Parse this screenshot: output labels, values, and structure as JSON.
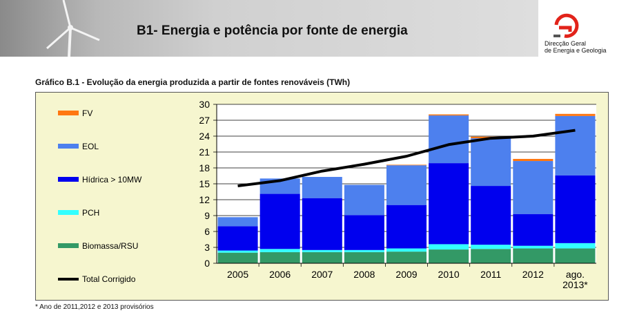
{
  "header": {
    "title": "B1- Energia e potência por fonte de energia",
    "logo_line1": "Direcção Geral",
    "logo_line2": "de Energia e Geologia"
  },
  "chart_heading": "Gráfico B.1 - Evolução da energia produzida a partir de fontes renováveis (TWh)",
  "footnote": "* Ano de 2011,2012 e 2013 provisórios",
  "chart_data": {
    "type": "bar",
    "stacked": true,
    "title": "",
    "xlabel": "",
    "ylabel": "",
    "ylim": [
      0,
      30
    ],
    "yticks": [
      0,
      3,
      6,
      9,
      12,
      15,
      18,
      21,
      24,
      27,
      30
    ],
    "grid": true,
    "legend_position": "left",
    "categories": [
      "2005",
      "2006",
      "2007",
      "2008",
      "2009",
      "2010",
      "2011",
      "2012",
      "ago.|2013*"
    ],
    "series": [
      {
        "name": "Biomassa/RSU",
        "color": "#339966",
        "values": [
          2.0,
          2.1,
          2.1,
          2.1,
          2.2,
          2.6,
          2.7,
          2.8,
          2.8
        ]
      },
      {
        "name": "PCH",
        "color": "#33ffff",
        "values": [
          0.4,
          0.6,
          0.4,
          0.4,
          0.6,
          1.0,
          0.8,
          0.5,
          1.0
        ]
      },
      {
        "name": "Hídrica > 10MW",
        "color": "#0000ee",
        "values": [
          4.6,
          10.4,
          9.8,
          6.6,
          8.2,
          15.3,
          11.1,
          6.0,
          12.8
        ]
      },
      {
        "name": "EOL",
        "color": "#4d80ee",
        "values": [
          1.7,
          2.9,
          4.0,
          5.7,
          7.5,
          9.0,
          9.0,
          10.0,
          11.2
        ]
      },
      {
        "name": "FV",
        "color": "#ff7711",
        "values": [
          0.0,
          0.0,
          0.0,
          0.0,
          0.1,
          0.2,
          0.3,
          0.4,
          0.4
        ]
      }
    ],
    "line_series": {
      "name": "Total Corrigido",
      "color": "#000000",
      "values": [
        14.6,
        15.6,
        17.4,
        18.7,
        20.2,
        22.4,
        23.6,
        24.0,
        25.1
      ]
    }
  }
}
